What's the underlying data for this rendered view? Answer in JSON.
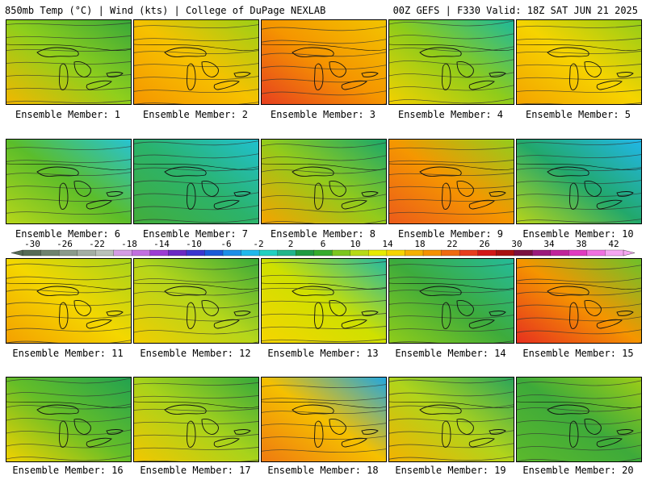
{
  "header": {
    "left": "850mb Temp (°C) | Wind (kts) | College of DuPage NEXLAB",
    "right": "00Z GEFS | F330 Valid: 18Z SAT JUN 21 2025"
  },
  "caption_prefix": "Ensemble Member: ",
  "members": [
    {
      "label": "Ensemble Member: 1",
      "colors": [
        "#f2b700",
        "#8fcf1c",
        "#38a83a"
      ]
    },
    {
      "label": "Ensemble Member: 2",
      "colors": [
        "#f59500",
        "#f6c200",
        "#9ccf17"
      ]
    },
    {
      "label": "Ensemble Member: 3",
      "colors": [
        "#e7401f",
        "#f59500",
        "#f2c400"
      ]
    },
    {
      "label": "Ensemble Member: 4",
      "colors": [
        "#f4d100",
        "#8ecc1b",
        "#1db99b"
      ]
    },
    {
      "label": "Ensemble Member: 5",
      "colors": [
        "#f3a300",
        "#f6d400",
        "#94cd18"
      ]
    },
    {
      "label": "Ensemble Member: 6",
      "colors": [
        "#b7d61a",
        "#5bbd2a",
        "#27c3d2"
      ]
    },
    {
      "label": "Ensemble Member: 7",
      "colors": [
        "#43ad3a",
        "#2bb36b",
        "#20c0cf"
      ]
    },
    {
      "label": "Ensemble Member: 8",
      "colors": [
        "#f5a300",
        "#93cb1b",
        "#1aa86a"
      ]
    },
    {
      "label": "Ensemble Member: 9",
      "colors": [
        "#ec5b1a",
        "#f59700",
        "#94cc1c"
      ]
    },
    {
      "label": "Ensemble Member: 10",
      "colors": [
        "#b8d41a",
        "#22a86b",
        "#21b7e8"
      ]
    },
    {
      "label": "Ensemble Member: 11",
      "colors": [
        "#f4a000",
        "#f4d700",
        "#a8d41a"
      ]
    },
    {
      "label": "Ensemble Member: 12",
      "colors": [
        "#f2cd00",
        "#b5d61b",
        "#3aaa3a"
      ]
    },
    {
      "label": "Ensemble Member: 13",
      "colors": [
        "#f6d500",
        "#cfe000",
        "#23b9a4"
      ]
    },
    {
      "label": "Ensemble Member: 14",
      "colors": [
        "#8fcc1a",
        "#3dab3c",
        "#24bb9a"
      ]
    },
    {
      "label": "Ensemble Member: 15",
      "colors": [
        "#e6301f",
        "#f59500",
        "#6dc12a"
      ]
    },
    {
      "label": "Ensemble Member: 16",
      "colors": [
        "#f3d200",
        "#65be28",
        "#22a250"
      ]
    },
    {
      "label": "Ensemble Member: 17",
      "colors": [
        "#f2c700",
        "#a8d31b",
        "#35a93c"
      ]
    },
    {
      "label": "Ensemble Member: 18",
      "colors": [
        "#ef7a10",
        "#f5c000",
        "#22a7e0"
      ]
    },
    {
      "label": "Ensemble Member: 19",
      "colors": [
        "#f4b200",
        "#b1d41b",
        "#2aa55a"
      ]
    },
    {
      "label": "Ensemble Member: 20",
      "colors": [
        "#5cb92c",
        "#3daa3a",
        "#9ccd18"
      ]
    }
  ],
  "colorbar": {
    "labels": [
      "-30",
      "-26",
      "-22",
      "-18",
      "-14",
      "-10",
      "-6",
      "-2",
      "2",
      "6",
      "10",
      "14",
      "18",
      "22",
      "26",
      "30",
      "34",
      "38",
      "42"
    ],
    "colors": [
      "#556b55",
      "#6e826e",
      "#8a9a8a",
      "#a3aea3",
      "#b9c1b9",
      "#d59ce6",
      "#c26fe0",
      "#9c3cd4",
      "#6a28c4",
      "#3a35cf",
      "#1a5bd8",
      "#1c8ee6",
      "#20b8ec",
      "#20d0c0",
      "#22b48a",
      "#1f9a40",
      "#34ab2c",
      "#7cc61f",
      "#b6da16",
      "#e8ea00",
      "#f7d400",
      "#f6b000",
      "#f59100",
      "#f06a10",
      "#e83d1e",
      "#d21818",
      "#a81010",
      "#7a1040",
      "#9b1b7c",
      "#c0249a",
      "#e03ac0",
      "#f070e0",
      "#f5a6f0"
    ]
  }
}
